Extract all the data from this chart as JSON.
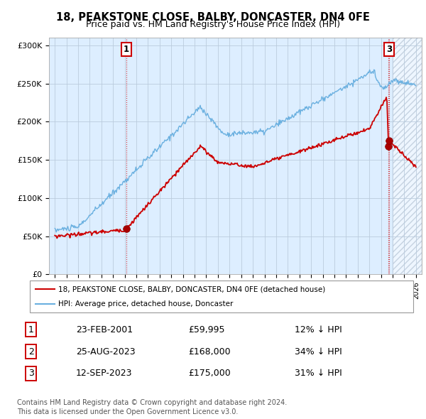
{
  "title": "18, PEAKSTONE CLOSE, BALBY, DONCASTER, DN4 0FE",
  "subtitle": "Price paid vs. HM Land Registry's House Price Index (HPI)",
  "legend_line1": "18, PEAKSTONE CLOSE, BALBY, DONCASTER, DN4 0FE (detached house)",
  "legend_line2": "HPI: Average price, detached house, Doncaster",
  "footer": "Contains HM Land Registry data © Crown copyright and database right 2024.\nThis data is licensed under the Open Government Licence v3.0.",
  "sale_points": [
    {
      "label": "1",
      "date": "23-FEB-2001",
      "price": 59995,
      "pct": "12% ↓ HPI",
      "x": 2001.14
    },
    {
      "label": "2",
      "date": "25-AUG-2023",
      "price": 168000,
      "pct": "34% ↓ HPI",
      "x": 2023.65
    },
    {
      "label": "3",
      "date": "12-SEP-2023",
      "price": 175000,
      "pct": "31% ↓ HPI",
      "x": 2023.71
    }
  ],
  "ylim": [
    0,
    310000
  ],
  "xlim": [
    1994.5,
    2026.5
  ],
  "yticks": [
    0,
    50000,
    100000,
    150000,
    200000,
    250000,
    300000
  ],
  "ytick_labels": [
    "£0",
    "£50K",
    "£100K",
    "£150K",
    "£200K",
    "£250K",
    "£300K"
  ],
  "hpi_color": "#6ab0e0",
  "price_color": "#cc0000",
  "marker_color": "#aa0000",
  "chart_bg": "#ddeeff",
  "bg_color": "#ffffff",
  "grid_color": "#bbccdd",
  "title_fontsize": 11,
  "subtitle_fontsize": 9.5,
  "hatch_start": 2024.0
}
